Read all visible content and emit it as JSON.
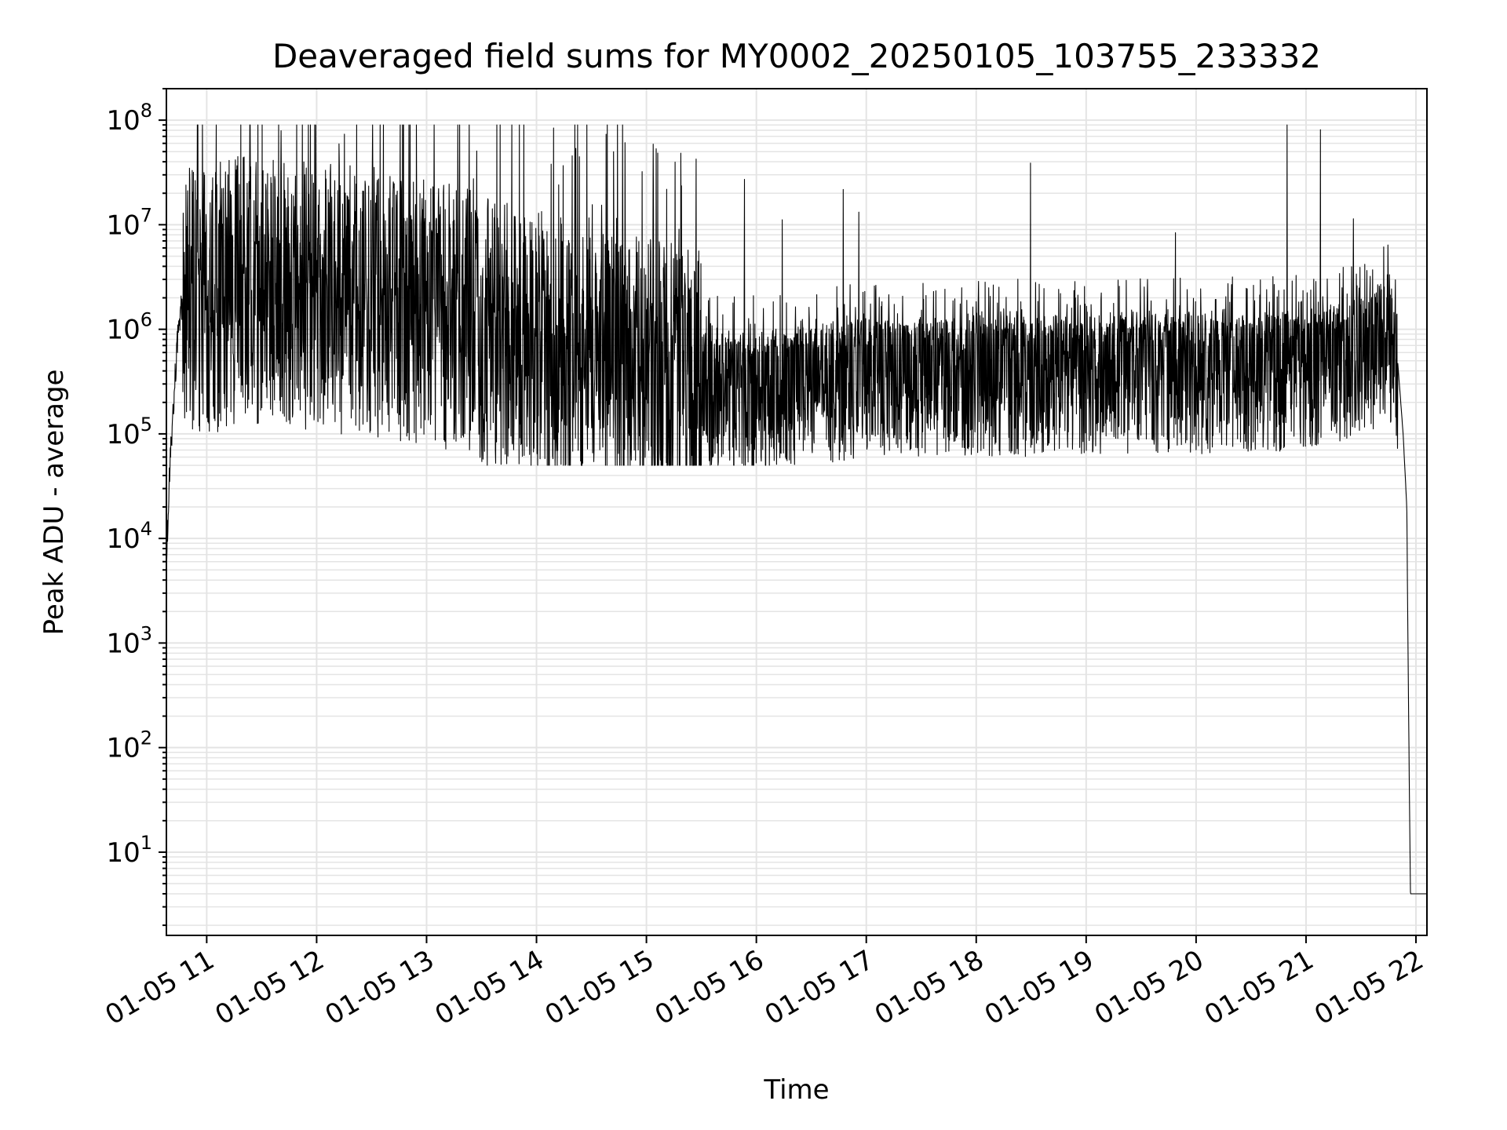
{
  "chart_data": {
    "type": "line",
    "title": "Deaveraged field sums for MY0002_20250105_103755_233332",
    "xlabel": "Time",
    "ylabel": "Peak ADU - average",
    "yscale": "log",
    "ylim": [
      1.6,
      200000000.0
    ],
    "xlim": [
      "01-05 10:38",
      "01-05 22:06"
    ],
    "grid": "on (major and minor)",
    "x_ticks": [
      "01-05 11",
      "01-05 12",
      "01-05 13",
      "01-05 14",
      "01-05 15",
      "01-05 16",
      "01-05 17",
      "01-05 18",
      "01-05 19",
      "01-05 20",
      "01-05 21",
      "01-05 22"
    ],
    "y_ticks": [
      {
        "base": "10",
        "exp": "1",
        "value": 10
      },
      {
        "base": "10",
        "exp": "2",
        "value": 100
      },
      {
        "base": "10",
        "exp": "3",
        "value": 1000
      },
      {
        "base": "10",
        "exp": "4",
        "value": 10000
      },
      {
        "base": "10",
        "exp": "5",
        "value": 100000
      },
      {
        "base": "10",
        "exp": "6",
        "value": 1000000
      },
      {
        "base": "10",
        "exp": "7",
        "value": 10000000
      },
      {
        "base": "10",
        "exp": "8",
        "value": 100000000
      }
    ],
    "series": [
      {
        "color": "#000000",
        "x": [
          "01-05 10:38",
          "01-05 10:39",
          "01-05 10:40",
          "01-05 10:42",
          "01-05 10:44",
          "01-05 10:46",
          "01-05 10:48",
          "01-05 11:00",
          "01-05 11:30",
          "01-05 12:00",
          "01-05 12:30",
          "01-05 13:00",
          "01-05 13:30",
          "01-05 14:00",
          "01-05 14:30",
          "01-05 15:00",
          "01-05 15:30",
          "01-05 16:00",
          "01-05 16:30",
          "01-05 17:00",
          "01-05 17:30",
          "01-05 18:00",
          "01-05 18:30",
          "01-05 19:00",
          "01-05 19:30",
          "01-05 20:00",
          "01-05 20:30",
          "01-05 21:00",
          "01-05 21:30",
          "01-05 21:45",
          "01-05 21:50",
          "01-05 21:53",
          "01-05 21:55",
          "01-05 21:56",
          "01-05 21:57",
          "01-05 22:06"
        ],
        "y": [
          7000,
          17000,
          60000,
          200000,
          800000,
          1600000,
          1800000,
          2000000,
          2500000,
          2000000,
          1800000,
          1500000,
          1000000,
          700000,
          500000,
          400000,
          300000,
          300000,
          350000,
          400000,
          420000,
          430000,
          430000,
          440000,
          440000,
          450000,
          460000,
          480000,
          650000,
          1000000,
          500000,
          100000,
          20000,
          200,
          4,
          4
        ]
      }
    ]
  }
}
